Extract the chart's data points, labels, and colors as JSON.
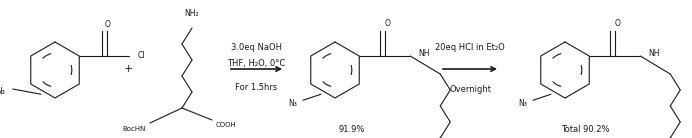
{
  "bg_color": "#ffffff",
  "line_color": "#1a1a1a",
  "text_color": "#1a1a1a",
  "figsize": [
    6.92,
    1.38
  ],
  "dpi": 100,
  "arrow1_label_top": "3.0eq NaOH",
  "arrow1_label_mid": "THF, H₂O, 0°C",
  "arrow1_label_bot": "For 1.5hrs",
  "arrow2_label_top": "20eq HCl in Et₂O",
  "arrow2_label_bot": "Overnight",
  "yield1": "91.9%",
  "yield2": "Total 90.2%",
  "fs": 5.5,
  "fs_label": 6.0,
  "fs_plus": 8.0
}
